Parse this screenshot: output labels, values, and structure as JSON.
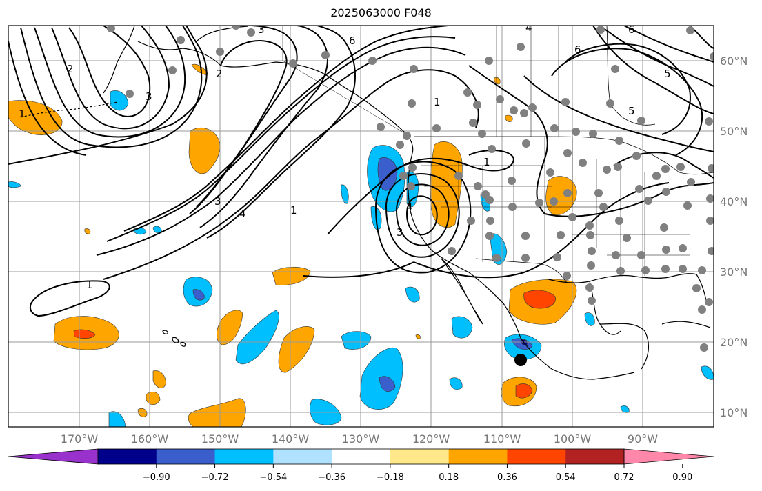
{
  "title": "2025063000 F048",
  "map": {
    "lon_ticks": [
      "170°W",
      "160°W",
      "150°W",
      "140°W",
      "130°W",
      "120°W",
      "110°W",
      "100°W",
      "90°W"
    ],
    "lat_ticks": [
      "60°N",
      "50°N",
      "40°N",
      "30°N",
      "20°N",
      "10°N"
    ],
    "contour_labels": [
      "3",
      "6",
      "6",
      "4",
      "2",
      "2",
      "3",
      "1",
      "5",
      "5",
      "6",
      "1",
      "1",
      "3",
      "4",
      "1",
      "4",
      "3",
      "1"
    ],
    "station_marker_color": "#808080",
    "storm_marker_color": "#000000"
  },
  "colorbar": {
    "tick_labels": [
      "−0.90",
      "−0.72",
      "−0.54",
      "−0.36",
      "−0.18",
      "0.18",
      "0.36",
      "0.54",
      "0.72",
      "0.90"
    ],
    "colors": [
      "#9932cc",
      "#00008b",
      "#3a5fcd",
      "#00bfff",
      "#b0e2ff",
      "#ffffff",
      "#ffe88a",
      "#ffa500",
      "#ff4500",
      "#b22222",
      "#ff88aa"
    ]
  }
}
